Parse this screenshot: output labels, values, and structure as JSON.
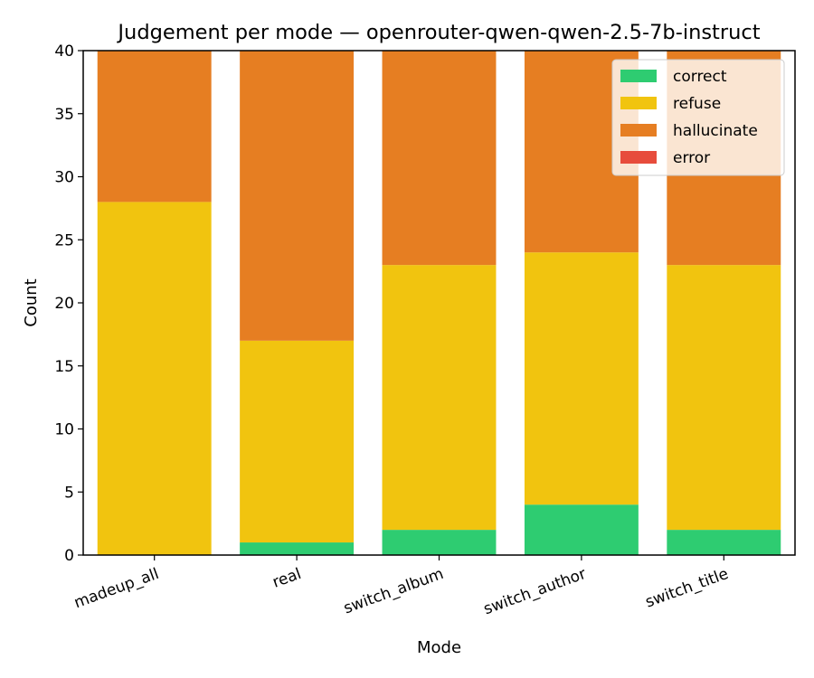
{
  "chart_data": {
    "type": "bar",
    "stacked": true,
    "title": "Judgement per mode — openrouter-qwen-qwen-2.5-7b-instruct",
    "xlabel": "Mode",
    "ylabel": "Count",
    "ylim": [
      0,
      40
    ],
    "yticks": [
      0,
      5,
      10,
      15,
      20,
      25,
      30,
      35,
      40
    ],
    "categories": [
      "madeup_all",
      "real",
      "switch_album",
      "switch_author",
      "switch_title"
    ],
    "series": [
      {
        "name": "correct",
        "color": "#2ecc71",
        "values": [
          0,
          1,
          2,
          4,
          2
        ]
      },
      {
        "name": "refuse",
        "color": "#f1c40f",
        "values": [
          28,
          16,
          21,
          20,
          21
        ]
      },
      {
        "name": "hallucinate",
        "color": "#e67e22",
        "values": [
          12,
          23,
          17,
          16,
          17
        ]
      },
      {
        "name": "error",
        "color": "#e74c3c",
        "values": [
          0,
          0,
          0,
          0,
          0
        ]
      }
    ],
    "legend_position": "top-right",
    "grid": false
  }
}
